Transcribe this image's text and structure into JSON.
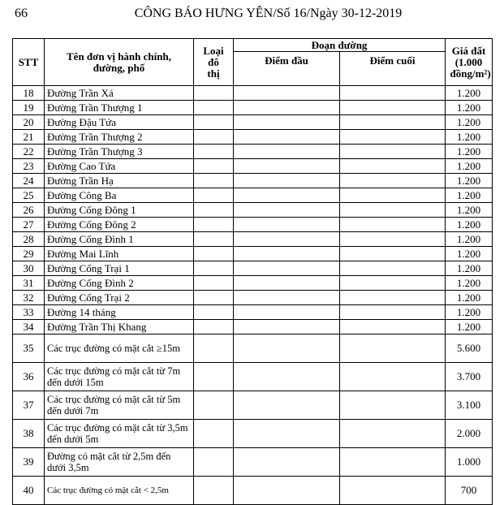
{
  "header": {
    "page_number": "66",
    "title": "CÔNG BÁO HƯNG YÊN/Số 16/Ngày 30-12-2019"
  },
  "table": {
    "columns": {
      "stt": "STT",
      "name": "Tên đơn vị hành chính, đường, phố",
      "urban_type": "Loại đô thị",
      "segment": "Đoạn đường",
      "start": "Điểm đầu",
      "end": "Điểm cuối",
      "price": "Giá đất (1.000 đồng/m²)"
    },
    "rows": [
      [
        "18",
        "Đường Trần Xá",
        "1.200"
      ],
      [
        "19",
        "Đường Trần Thượng 1",
        "1.200"
      ],
      [
        "20",
        "Đường Đậu Tứa",
        "1.200"
      ],
      [
        "21",
        "Đường Trần Thượng 2",
        "1.200"
      ],
      [
        "22",
        "Đường Trần Thượng 3",
        "1.200"
      ],
      [
        "23",
        "Đường Cao Tứa",
        "1.200"
      ],
      [
        "24",
        "Đường Trần Hạ",
        "1.200"
      ],
      [
        "25",
        "Đường Công Ba",
        "1.200"
      ],
      [
        "26",
        "Đường Cống Đông 1",
        "1.200"
      ],
      [
        "27",
        "Đường Cống Đông 2",
        "1.200"
      ],
      [
        "28",
        "Đường Cống Đình 1",
        "1.200"
      ],
      [
        "29",
        "Đường Mai Lĩnh",
        "1.200"
      ],
      [
        "30",
        "Đường Cống Trại 1",
        "1.200"
      ],
      [
        "31",
        "Đường Cống Đình 2",
        "1.200"
      ],
      [
        "32",
        "Đường Cống Trại 2",
        "1.200"
      ],
      [
        "33",
        "Đường 14 tháng",
        "1.200"
      ],
      [
        "34",
        "Đường Trần Thị Khang",
        "1.200"
      ],
      [
        "35",
        "Các trục đường có mặt cắt ≥15m",
        "5.600"
      ],
      [
        "36",
        "Các trục đường có mặt cắt từ 7m đến dưới 15m",
        "3.700"
      ],
      [
        "37",
        "Các trục đường có mặt cắt từ 5m đến dưới 7m",
        "3.100"
      ],
      [
        "38",
        "Các trục đường có mặt cắt từ 3,5m đến dưới 5m",
        "2.000"
      ],
      [
        "39",
        "Đường có mặt cắt từ 2,5m đến dưới 3,5m",
        "1.000"
      ],
      [
        "40",
        "Các trục đường có mặt cắt < 2,5m",
        "700"
      ]
    ]
  }
}
